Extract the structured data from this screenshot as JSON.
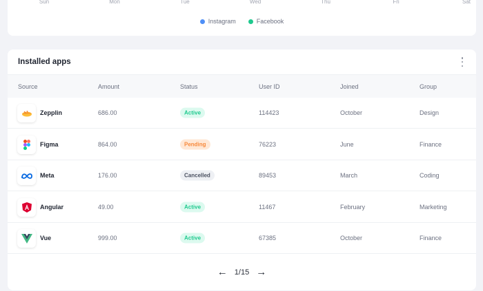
{
  "chart": {
    "days": [
      "Sun",
      "Mon",
      "Tue",
      "Wed",
      "Thu",
      "Fri",
      "Sat"
    ],
    "legend": [
      {
        "label": "Instagram",
        "color": "#4f8ff7"
      },
      {
        "label": "Facebook",
        "color": "#1fc98e"
      }
    ]
  },
  "apps": {
    "title": "Installed apps",
    "columns": [
      "Source",
      "Amount",
      "Status",
      "User ID",
      "Joined",
      "Group"
    ],
    "rows": [
      {
        "source": "Zepplin",
        "icon": "zeplin-icon",
        "amount": "686.00",
        "status": "Active",
        "user_id": "114423",
        "joined": "October",
        "group": "Design"
      },
      {
        "source": "Figma",
        "icon": "figma-icon",
        "amount": "864.00",
        "status": "Pending",
        "user_id": "76223",
        "joined": "June",
        "group": "Finance"
      },
      {
        "source": "Meta",
        "icon": "meta-icon",
        "amount": "176.00",
        "status": "Cancelled",
        "user_id": "89453",
        "joined": "March",
        "group": "Coding"
      },
      {
        "source": "Angular",
        "icon": "angular-icon",
        "amount": "49.00",
        "status": "Active",
        "user_id": "11467",
        "joined": "February",
        "group": "Marketing"
      },
      {
        "source": "Vue",
        "icon": "vue-icon",
        "amount": "999.00",
        "status": "Active",
        "user_id": "67385",
        "joined": "October",
        "group": "Finance"
      }
    ],
    "status_colors": {
      "Active": {
        "bg": "#dcfaef",
        "fg": "#1fc98e"
      },
      "Pending": {
        "bg": "#ffe8d6",
        "fg": "#f7893b"
      },
      "Cancelled": {
        "bg": "#eef0f4",
        "fg": "#4a5060"
      }
    },
    "pagination": {
      "label": "1/15"
    }
  }
}
